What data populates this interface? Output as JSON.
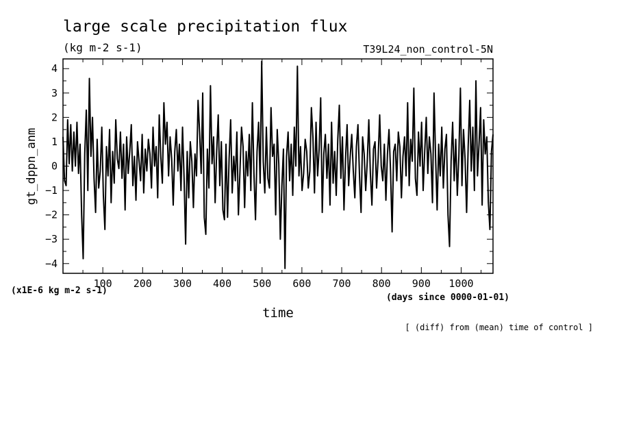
{
  "chart_data": {
    "type": "line",
    "title": "large scale precipitation flux",
    "units": "(kg m-2 s-1)",
    "experiment": "T39L24_non_control-5N",
    "ylabel": "gt_dppn_anm",
    "xlabel": "time",
    "x_units": "(days since 0000-01-01)",
    "y_scale_note": "(x1E-6 kg m-2 s-1)",
    "footnote": "[ (diff) from (mean) time of control ]",
    "xlim": [
      0,
      1080
    ],
    "ylim": [
      -4.4,
      4.4
    ],
    "x_ticks": [
      100,
      200,
      300,
      400,
      500,
      600,
      700,
      800,
      900,
      1000
    ],
    "y_ticks": [
      -4,
      -3,
      -2,
      -1,
      0,
      1,
      2,
      3,
      4
    ],
    "grid": false,
    "series": [
      {
        "values": [
          1.2,
          -0.6,
          -0.8,
          1.9,
          0.1,
          1.7,
          -0.2,
          1.4,
          0.0,
          1.8,
          -0.3,
          0.9,
          -2.0,
          -3.8,
          0.5,
          2.3,
          -1.0,
          3.6,
          0.4,
          2.0,
          -0.5,
          -1.9,
          1.1,
          -0.9,
          -0.2,
          1.6,
          -1.2,
          -2.6,
          0.8,
          -0.4,
          1.5,
          -1.5,
          0.6,
          -0.7,
          1.9,
          0.3,
          -0.1,
          1.4,
          -0.5,
          0.9,
          -1.8,
          1.2,
          -0.3,
          0.6,
          1.7,
          -0.8,
          0.4,
          -1.4,
          1.0,
          0.2,
          -0.6,
          1.3,
          -1.1,
          0.7,
          -0.2,
          1.1,
          0.5,
          -0.9,
          1.6,
          0.0,
          0.8,
          -1.3,
          2.1,
          0.4,
          -0.7,
          2.6,
          0.9,
          1.8,
          -0.4,
          1.2,
          0.3,
          -1.6,
          0.6,
          1.5,
          -0.2,
          0.9,
          -1.0,
          1.6,
          -0.5,
          -3.2,
          0.6,
          -1.3,
          1.0,
          0.2,
          -1.7,
          0.5,
          -0.4,
          2.7,
          1.4,
          -0.3,
          3.0,
          -2.1,
          -2.8,
          0.7,
          -0.9,
          3.3,
          0.1,
          1.2,
          -1.5,
          0.6,
          2.1,
          -0.8,
          1.0,
          -1.8,
          -2.2,
          0.9,
          -2.1,
          0.3,
          1.9,
          -1.1,
          0.4,
          -0.6,
          1.4,
          -2.0,
          -0.2,
          1.6,
          0.8,
          -1.7,
          0.6,
          -0.4,
          1.3,
          -1.0,
          2.6,
          -0.3,
          -2.2,
          0.6,
          1.8,
          -0.7,
          4.3,
          0.2,
          -1.1,
          1.6,
          -0.5,
          -0.9,
          2.4,
          0.4,
          0.9,
          -2.0,
          1.5,
          0.1,
          -3.0,
          -0.8,
          0.7,
          -4.2,
          0.4,
          1.4,
          -0.6,
          0.9,
          -1.2,
          1.6,
          0.0,
          4.1,
          -0.4,
          0.8,
          -1.0,
          -0.3,
          1.1,
          0.6,
          -0.9,
          -0.2,
          2.4,
          1.2,
          -1.1,
          1.8,
          -0.4,
          0.7,
          2.8,
          -1.9,
          0.5,
          1.3,
          -0.5,
          0.9,
          -1.6,
          1.8,
          -0.7,
          0.6,
          -1.2,
          1.1,
          2.5,
          -0.5,
          1.2,
          -1.8,
          0.3,
          1.7,
          -0.8,
          0.4,
          1.3,
          -0.2,
          -1.3,
          0.8,
          1.7,
          -0.4,
          -1.9,
          1.2,
          0.5,
          -1.0,
          0.2,
          1.9,
          -0.3,
          -1.6,
          0.7,
          1.0,
          -0.9,
          0.3,
          2.1,
          0.0,
          -0.6,
          0.9,
          -1.4,
          0.5,
          1.5,
          -0.2,
          -2.7,
          0.6,
          0.9,
          -0.6,
          1.4,
          0.8,
          -1.3,
          0.4,
          1.2,
          -0.4,
          2.6,
          -0.8,
          1.1,
          0.2,
          3.2,
          -0.5,
          -1.2,
          1.4,
          0.0,
          1.8,
          -1.0,
          0.6,
          2.0,
          -0.3,
          1.2,
          0.5,
          -1.5,
          3.0,
          0.4,
          -1.8,
          0.9,
          -0.4,
          1.6,
          -0.9,
          0.7,
          1.3,
          -2.0,
          -3.3,
          0.2,
          1.8,
          -0.6,
          1.1,
          -1.2,
          0.4,
          3.2,
          -0.8,
          1.5,
          0.3,
          -1.9,
          0.8,
          2.7,
          -0.2,
          1.6,
          -1.0,
          3.5,
          -0.4,
          0.9,
          2.4,
          -1.6,
          1.9,
          0.5,
          1.2,
          -1.5,
          -2.6,
          0.6,
          1.3
        ]
      }
    ]
  }
}
